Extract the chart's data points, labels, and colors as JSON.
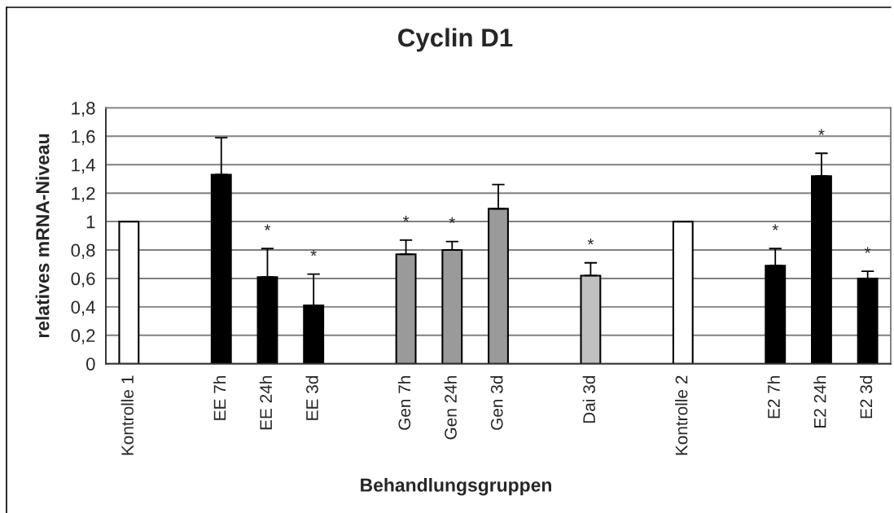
{
  "chart_data": {
    "type": "bar",
    "title": "Cyclin D1",
    "xlabel": "Behandlungsgruppen",
    "ylabel": "relatives mRNA-Niveau",
    "categories": [
      "Kontrolle 1",
      null,
      "EE 7h",
      "EE 24h",
      "EE 3d",
      null,
      "Gen 7h",
      "Gen 24h",
      "Gen 3d",
      null,
      "Dai 3d",
      null,
      "Kontrolle 2",
      null,
      "E2 7h",
      "E2 24h",
      "E2 3d"
    ],
    "values": [
      1.0,
      null,
      1.33,
      0.61,
      0.41,
      null,
      0.77,
      0.8,
      1.09,
      null,
      0.62,
      null,
      1.0,
      null,
      0.69,
      1.32,
      0.6
    ],
    "colors": [
      "#ffffff",
      null,
      "#000000",
      "#000000",
      "#000000",
      null,
      "#9a9a9a",
      "#9a9a9a",
      "#9a9a9a",
      null,
      "#c0c0c0",
      null,
      "#ffffff",
      null,
      "#000000",
      "#000000",
      "#000000"
    ],
    "errors": [
      null,
      null,
      [
        1.33,
        1.59
      ],
      [
        0.61,
        0.81
      ],
      [
        0.41,
        0.63
      ],
      null,
      [
        0.77,
        0.87
      ],
      [
        0.8,
        0.86
      ],
      [
        1.09,
        1.26
      ],
      null,
      [
        0.62,
        0.71
      ],
      null,
      null,
      null,
      [
        0.69,
        0.81
      ],
      [
        1.32,
        1.48
      ],
      [
        0.6,
        0.65
      ]
    ],
    "value_labels": [
      null,
      null,
      null,
      "*",
      "*",
      null,
      "*",
      "*",
      null,
      null,
      "*",
      null,
      null,
      null,
      "*",
      "*",
      "*"
    ],
    "ylim": [
      0,
      1.8
    ],
    "yticks": [
      0,
      {
        "value": 0.2,
        "label": "0,2"
      },
      {
        "value": 0.4,
        "label": "0,4"
      },
      {
        "value": 0.6,
        "label": "0,6"
      },
      {
        "value": 0.8,
        "label": "0,8"
      },
      1,
      {
        "value": 1.2,
        "label": "1,2"
      },
      {
        "value": 1.4,
        "label": "1,4"
      },
      {
        "value": 1.6,
        "label": "1,6"
      },
      {
        "value": 1.8,
        "label": "1,8"
      }
    ],
    "grid": "y"
  }
}
